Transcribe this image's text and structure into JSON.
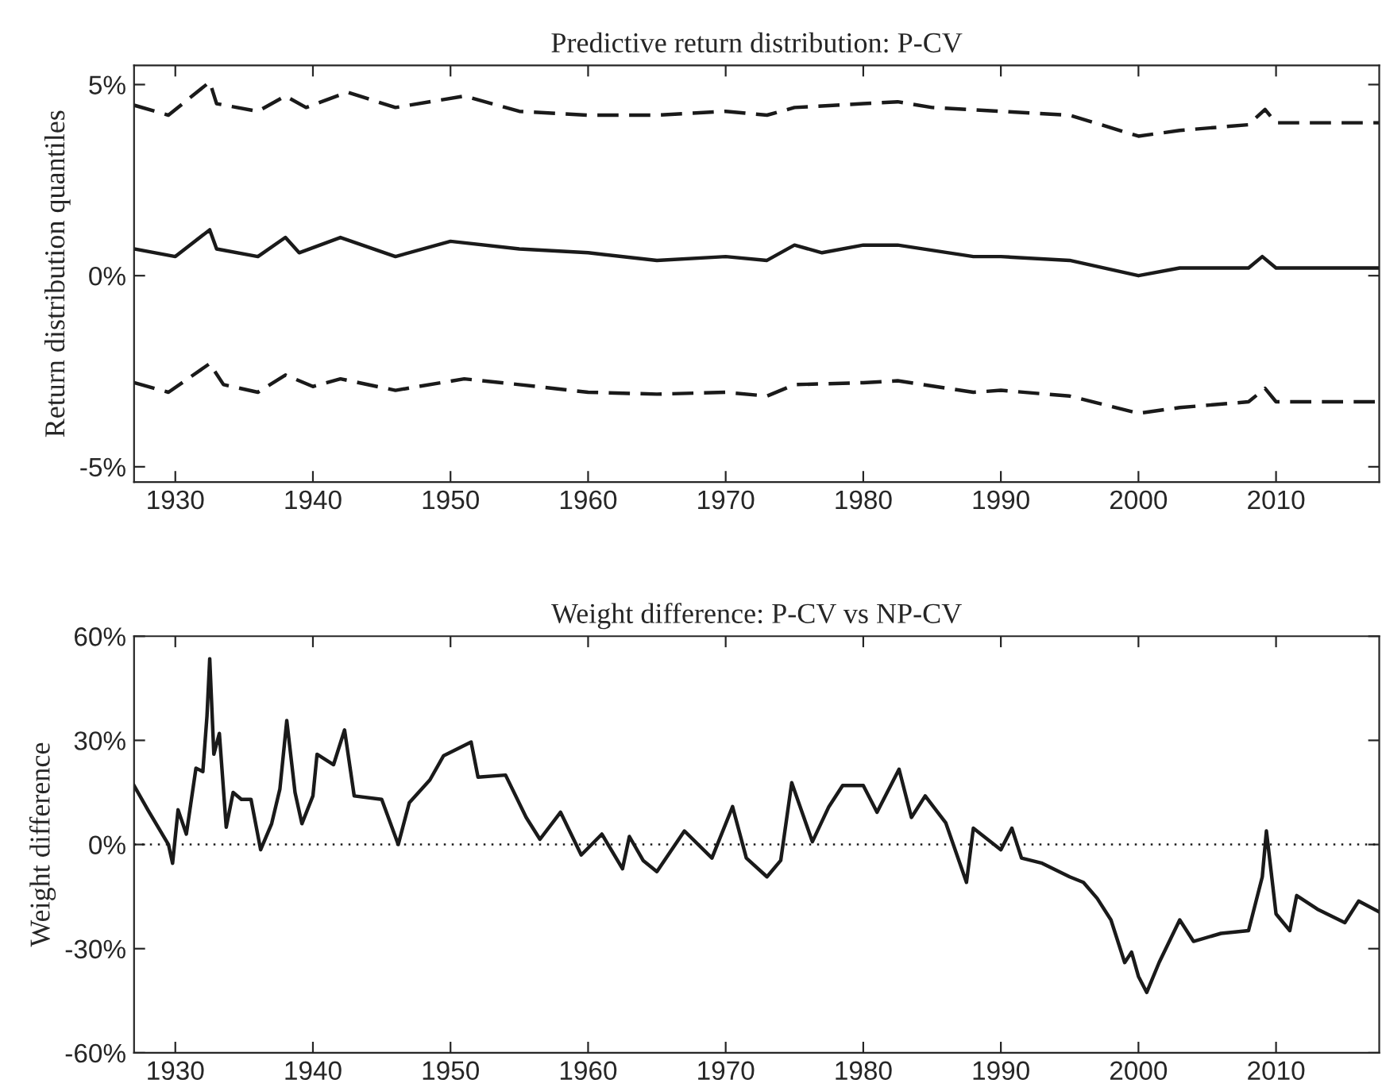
{
  "chart_data": [
    {
      "type": "line",
      "title": "Predictive return distribution: P-CV",
      "ylabel": "Return distribution quantiles",
      "xlim": [
        1927,
        2017.5
      ],
      "xticks": [
        1930,
        1940,
        1950,
        1960,
        1970,
        1980,
        1990,
        2000,
        2010
      ],
      "ylim": [
        -5.4,
        5.5
      ],
      "yticks": [
        {
          "value": -5,
          "label": "-5%"
        },
        {
          "value": 0,
          "label": "0%"
        },
        {
          "value": 5,
          "label": "5%"
        }
      ],
      "grid": false,
      "series": [
        {
          "color": "#1a1a1a",
          "line_style": "dashed",
          "x": [
            1927,
            1929.5,
            1932.5,
            1933,
            1936,
            1938,
            1939.5,
            1942.5,
            1946,
            1951,
            1955,
            1960,
            1965,
            1970,
            1973,
            1975,
            1980,
            1982.5,
            1985,
            1990,
            1995,
            2000,
            2003,
            2008,
            2009.2,
            2010,
            2017.5
          ],
          "values": [
            4.46,
            4.2,
            5.07,
            4.5,
            4.3,
            4.7,
            4.4,
            4.8,
            4.4,
            4.7,
            4.3,
            4.2,
            4.2,
            4.3,
            4.2,
            4.4,
            4.5,
            4.55,
            4.4,
            4.3,
            4.2,
            3.65,
            3.8,
            3.95,
            4.35,
            4.0,
            4.0
          ]
        },
        {
          "color": "#1a1a1a",
          "line_style": "solid",
          "x": [
            1927,
            1930,
            1932.5,
            1933,
            1936,
            1938,
            1939,
            1942,
            1946,
            1950,
            1955,
            1960,
            1965,
            1970,
            1973,
            1975,
            1977,
            1980,
            1982.5,
            1988,
            1990,
            1995,
            2000,
            2003,
            2008,
            2009,
            2010,
            2017.5
          ],
          "values": [
            0.7,
            0.5,
            1.2,
            0.7,
            0.5,
            1.0,
            0.6,
            1.0,
            0.5,
            0.9,
            0.7,
            0.6,
            0.4,
            0.5,
            0.4,
            0.8,
            0.6,
            0.8,
            0.8,
            0.5,
            0.5,
            0.4,
            0.0,
            0.2,
            0.2,
            0.5,
            0.2,
            0.2
          ]
        },
        {
          "color": "#1a1a1a",
          "line_style": "dashed",
          "x": [
            1927,
            1929.5,
            1932.5,
            1933.5,
            1936,
            1938,
            1940,
            1942,
            1946,
            1951,
            1955,
            1960,
            1965,
            1970,
            1973,
            1975,
            1980,
            1982.5,
            1988,
            1990,
            1995,
            2000,
            2003,
            2008,
            2009.2,
            2010,
            2017.5
          ],
          "values": [
            -2.8,
            -3.05,
            -2.3,
            -2.85,
            -3.05,
            -2.6,
            -2.9,
            -2.7,
            -3.0,
            -2.7,
            -2.85,
            -3.05,
            -3.1,
            -3.05,
            -3.15,
            -2.85,
            -2.8,
            -2.75,
            -3.05,
            -3.0,
            -3.15,
            -3.6,
            -3.45,
            -3.3,
            -2.95,
            -3.3,
            -3.3
          ]
        }
      ]
    },
    {
      "type": "line",
      "title": "Weight difference: P-CV vs NP-CV",
      "ylabel": "Weight difference",
      "xlim": [
        1927,
        2017.5
      ],
      "xticks": [
        1930,
        1940,
        1950,
        1960,
        1970,
        1980,
        1990,
        2000,
        2010
      ],
      "ylim": [
        -60,
        60
      ],
      "yticks": [
        {
          "value": -60,
          "label": "-60%"
        },
        {
          "value": -30,
          "label": "-30%"
        },
        {
          "value": 0,
          "label": "0%"
        },
        {
          "value": 30,
          "label": "30%"
        },
        {
          "value": 60,
          "label": "60%"
        }
      ],
      "grid": false,
      "ref_lines": [
        {
          "axis": "y",
          "value": 0,
          "label": null,
          "color": "#1a1a1a",
          "line_style": "dotted"
        }
      ],
      "series": [
        {
          "color": "#1a1a1a",
          "line_style": "solid",
          "x": [
            1927,
            1928,
            1929.5,
            1929.8,
            1930.2,
            1930.8,
            1931.5,
            1932,
            1932.3,
            1932.5,
            1932.8,
            1933.2,
            1933.7,
            1934.2,
            1934.8,
            1935.5,
            1936.2,
            1937,
            1937.6,
            1938.1,
            1938.7,
            1939.2,
            1940,
            1940.3,
            1941.5,
            1942.3,
            1943,
            1945,
            1946.2,
            1947,
            1948.5,
            1949.5,
            1951.5,
            1952,
            1954,
            1955.5,
            1956.5,
            1958,
            1959.5,
            1961,
            1962.5,
            1963,
            1964,
            1965,
            1967,
            1969,
            1970.5,
            1971.5,
            1973,
            1974,
            1974.8,
            1976.3,
            1977.5,
            1978.5,
            1980,
            1981,
            1982.6,
            1983.5,
            1984.5,
            1986,
            1987.5,
            1988,
            1990,
            1990.8,
            1991.5,
            1993,
            1995,
            1996,
            1997,
            1998,
            1999,
            1999.5,
            2000,
            2000.6,
            2001.5,
            2003,
            2004,
            2006,
            2008,
            2009,
            2009.3,
            2010,
            2011,
            2011.5,
            2013,
            2015,
            2016,
            2017.5
          ],
          "values": [
            17,
            10,
            0,
            -5.4,
            10,
            3,
            22,
            21,
            37,
            53.5,
            26,
            32,
            5,
            15,
            13,
            13,
            -1.5,
            6,
            16,
            35.7,
            15,
            6,
            14,
            26,
            23,
            33,
            14,
            13,
            0,
            12,
            18.6,
            25.6,
            29.5,
            19.4,
            20,
            7.8,
            1.5,
            9.3,
            -3,
            3,
            -7,
            2.3,
            -4.6,
            -7.8,
            3.9,
            -3.9,
            10.9,
            -3.9,
            -9.3,
            -4.6,
            17.8,
            0.8,
            10.9,
            17,
            17,
            9.3,
            21.7,
            7.8,
            14,
            6.2,
            -10.9,
            4.7,
            -1.5,
            4.7,
            -3.9,
            -5.4,
            -9.3,
            -10.9,
            -15.5,
            -21.7,
            -34,
            -31,
            -38,
            -42.6,
            -34,
            -21.7,
            -27.9,
            -25.6,
            -24.8,
            -9.3,
            3.9,
            -20,
            -24.8,
            -14.7,
            -18.6,
            -22.5,
            -16.3,
            -19.4
          ]
        }
      ]
    }
  ]
}
